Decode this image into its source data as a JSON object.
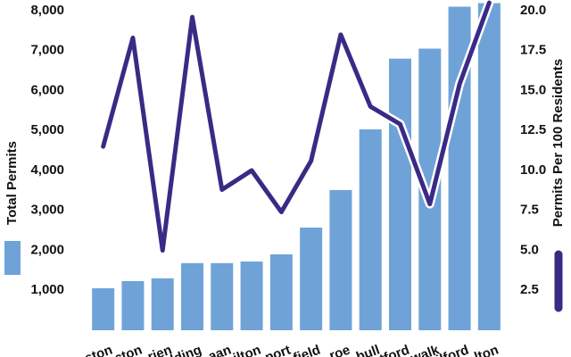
{
  "chart_data": {
    "type": "bar-line",
    "categories": [
      "ston",
      "cton",
      "rien",
      "lding",
      "aan",
      "ilton",
      "port",
      "field",
      "roe",
      "bull",
      "tford",
      "walk",
      "ilford",
      "lton"
    ],
    "series": [
      {
        "name": "Total Permits",
        "type": "bar",
        "color": "#6fa3d8",
        "values": [
          1050,
          1230,
          1300,
          1680,
          1680,
          1720,
          1900,
          2570,
          3510,
          5030,
          6800,
          7050,
          8100,
          8190
        ]
      },
      {
        "name": "Permits Per 100 Residents",
        "type": "line",
        "axis": "y2",
        "color": "#3a2a86",
        "values": [
          11.5,
          18.3,
          5.0,
          19.6,
          8.8,
          10.0,
          7.4,
          10.6,
          18.5,
          14.0,
          12.9,
          7.9,
          15.4,
          20.5
        ]
      }
    ],
    "ylim": [
      0,
      8000
    ],
    "yticks": [
      {
        "value": 1000,
        "label": "1,000"
      },
      {
        "value": 2000,
        "label": "2,000"
      },
      {
        "value": 3000,
        "label": "3,000"
      },
      {
        "value": 4000,
        "label": "4,000"
      },
      {
        "value": 5000,
        "label": "5,000"
      },
      {
        "value": 6000,
        "label": "6,000"
      },
      {
        "value": 7000,
        "label": "7,000"
      },
      {
        "value": 8000,
        "label": "8,000"
      }
    ],
    "y2lim": [
      0,
      20
    ],
    "y2ticks": [
      2.5,
      {
        "value": 5,
        "label": "5.0"
      },
      7.5,
      {
        "value": 10,
        "label": "10.0"
      },
      12.5,
      {
        "value": 15,
        "label": "15.0"
      },
      17.5,
      {
        "value": 20,
        "label": "20.0"
      }
    ]
  }
}
